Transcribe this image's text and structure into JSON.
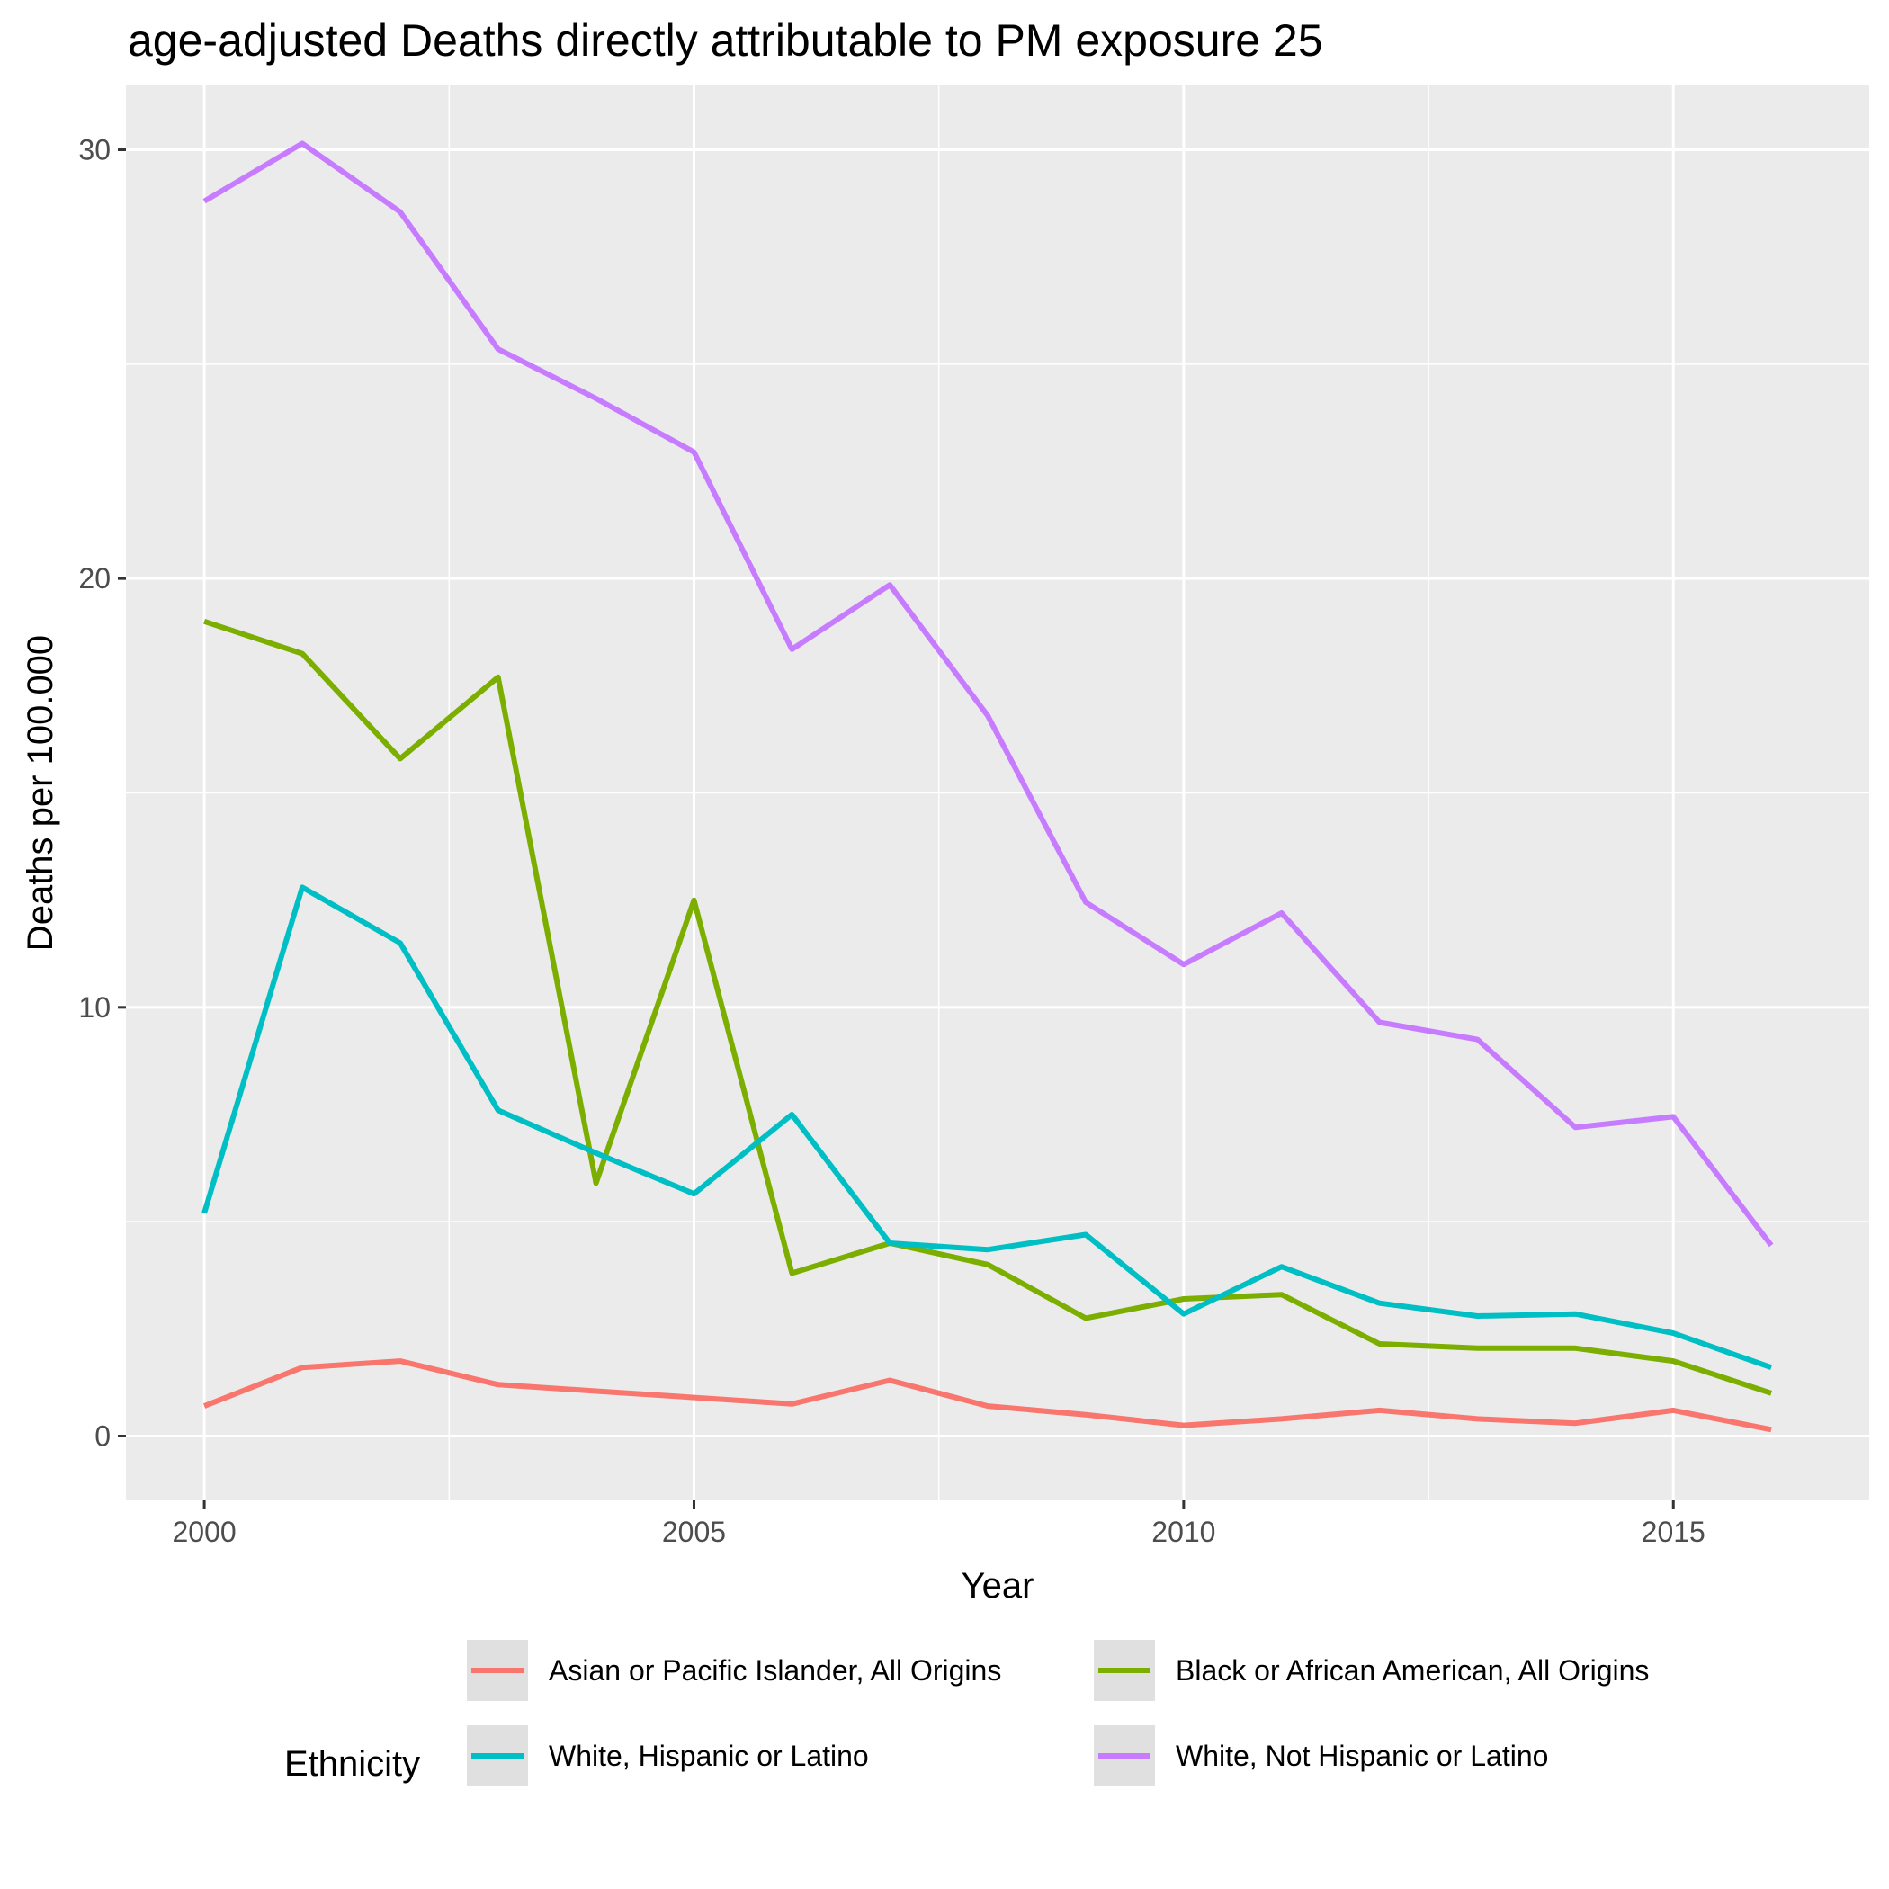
{
  "chart_data": {
    "type": "line",
    "title": "age-adjusted Deaths directly attributable to PM exposure 25",
    "xlabel": "Year",
    "ylabel": "Deaths per 100.000",
    "x": [
      2000,
      2001,
      2002,
      2003,
      2004,
      2005,
      2006,
      2007,
      2008,
      2009,
      2010,
      2011,
      2012,
      2013,
      2014,
      2015,
      2016
    ],
    "xlim": [
      1999.2,
      2017.0
    ],
    "ylim": [
      -1.5,
      31.5
    ],
    "x_ticks": [
      2000,
      2005,
      2010,
      2015
    ],
    "x_tick_labels": [
      "2000",
      "2005",
      "2010",
      "2015"
    ],
    "x_minor_ticks": [
      2002.5,
      2007.5,
      2012.5
    ],
    "y_ticks": [
      0,
      10,
      20,
      30
    ],
    "y_tick_labels": [
      "0",
      "10",
      "20",
      "30"
    ],
    "y_minor_ticks": [
      5,
      15,
      25
    ],
    "grid": true,
    "legend": {
      "title": "Ethnicity",
      "position": "bottom"
    },
    "series": [
      {
        "name": "Asian or Pacific Islander, All Origins",
        "color": "#F8766D",
        "values": [
          0.7,
          1.6,
          1.75,
          1.2,
          1.05,
          0.9,
          0.75,
          1.3,
          0.7,
          0.5,
          0.25,
          0.4,
          0.6,
          0.4,
          0.3,
          0.6,
          0.15
        ]
      },
      {
        "name": "Black or African American, All Origins",
        "color": "#7CAE00",
        "values": [
          19.0,
          18.25,
          15.8,
          17.7,
          5.9,
          12.5,
          3.8,
          4.5,
          4.0,
          2.75,
          3.2,
          3.3,
          2.15,
          2.05,
          2.05,
          1.75,
          1.0
        ]
      },
      {
        "name": "White, Hispanic or Latino",
        "color": "#00BFC4",
        "values": [
          5.2,
          12.8,
          11.5,
          7.6,
          6.6,
          5.65,
          7.5,
          4.5,
          4.35,
          4.7,
          2.85,
          3.95,
          3.1,
          2.8,
          2.85,
          2.4,
          1.6
        ]
      },
      {
        "name": "White, Not Hispanic or Latino",
        "color": "#C77CFF",
        "values": [
          28.8,
          30.15,
          28.55,
          25.35,
          24.2,
          22.95,
          18.35,
          19.85,
          16.8,
          12.45,
          11.0,
          12.2,
          9.65,
          9.25,
          7.2,
          7.45,
          4.45
        ]
      }
    ]
  }
}
